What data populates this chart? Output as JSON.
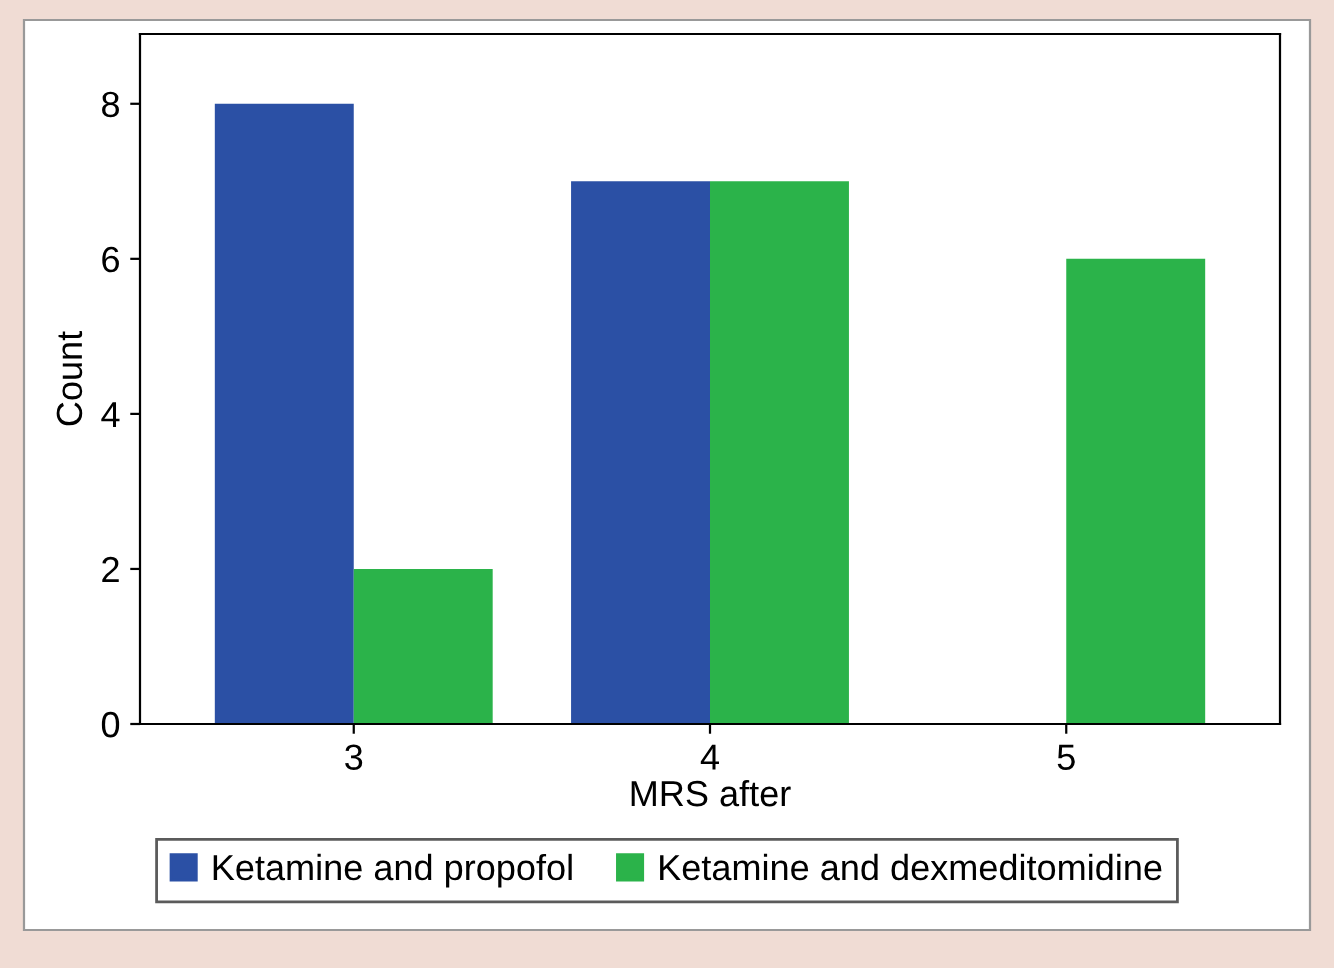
{
  "chart_data": {
    "type": "bar",
    "xlabel": "MRS after",
    "ylabel": "Count",
    "categories": [
      "3",
      "4",
      "5"
    ],
    "series": [
      {
        "name": "Ketamine and propofol",
        "color": "#2b50a5",
        "values": [
          8,
          7,
          0
        ]
      },
      {
        "name": "Ketamine and dexmeditomidine",
        "color": "#2bb34a",
        "values": [
          2,
          7,
          6
        ]
      }
    ],
    "ylim": [
      0,
      8.9
    ],
    "yticks": [
      0,
      2,
      4,
      6,
      8
    ],
    "grid": false,
    "legend": "bottom"
  }
}
